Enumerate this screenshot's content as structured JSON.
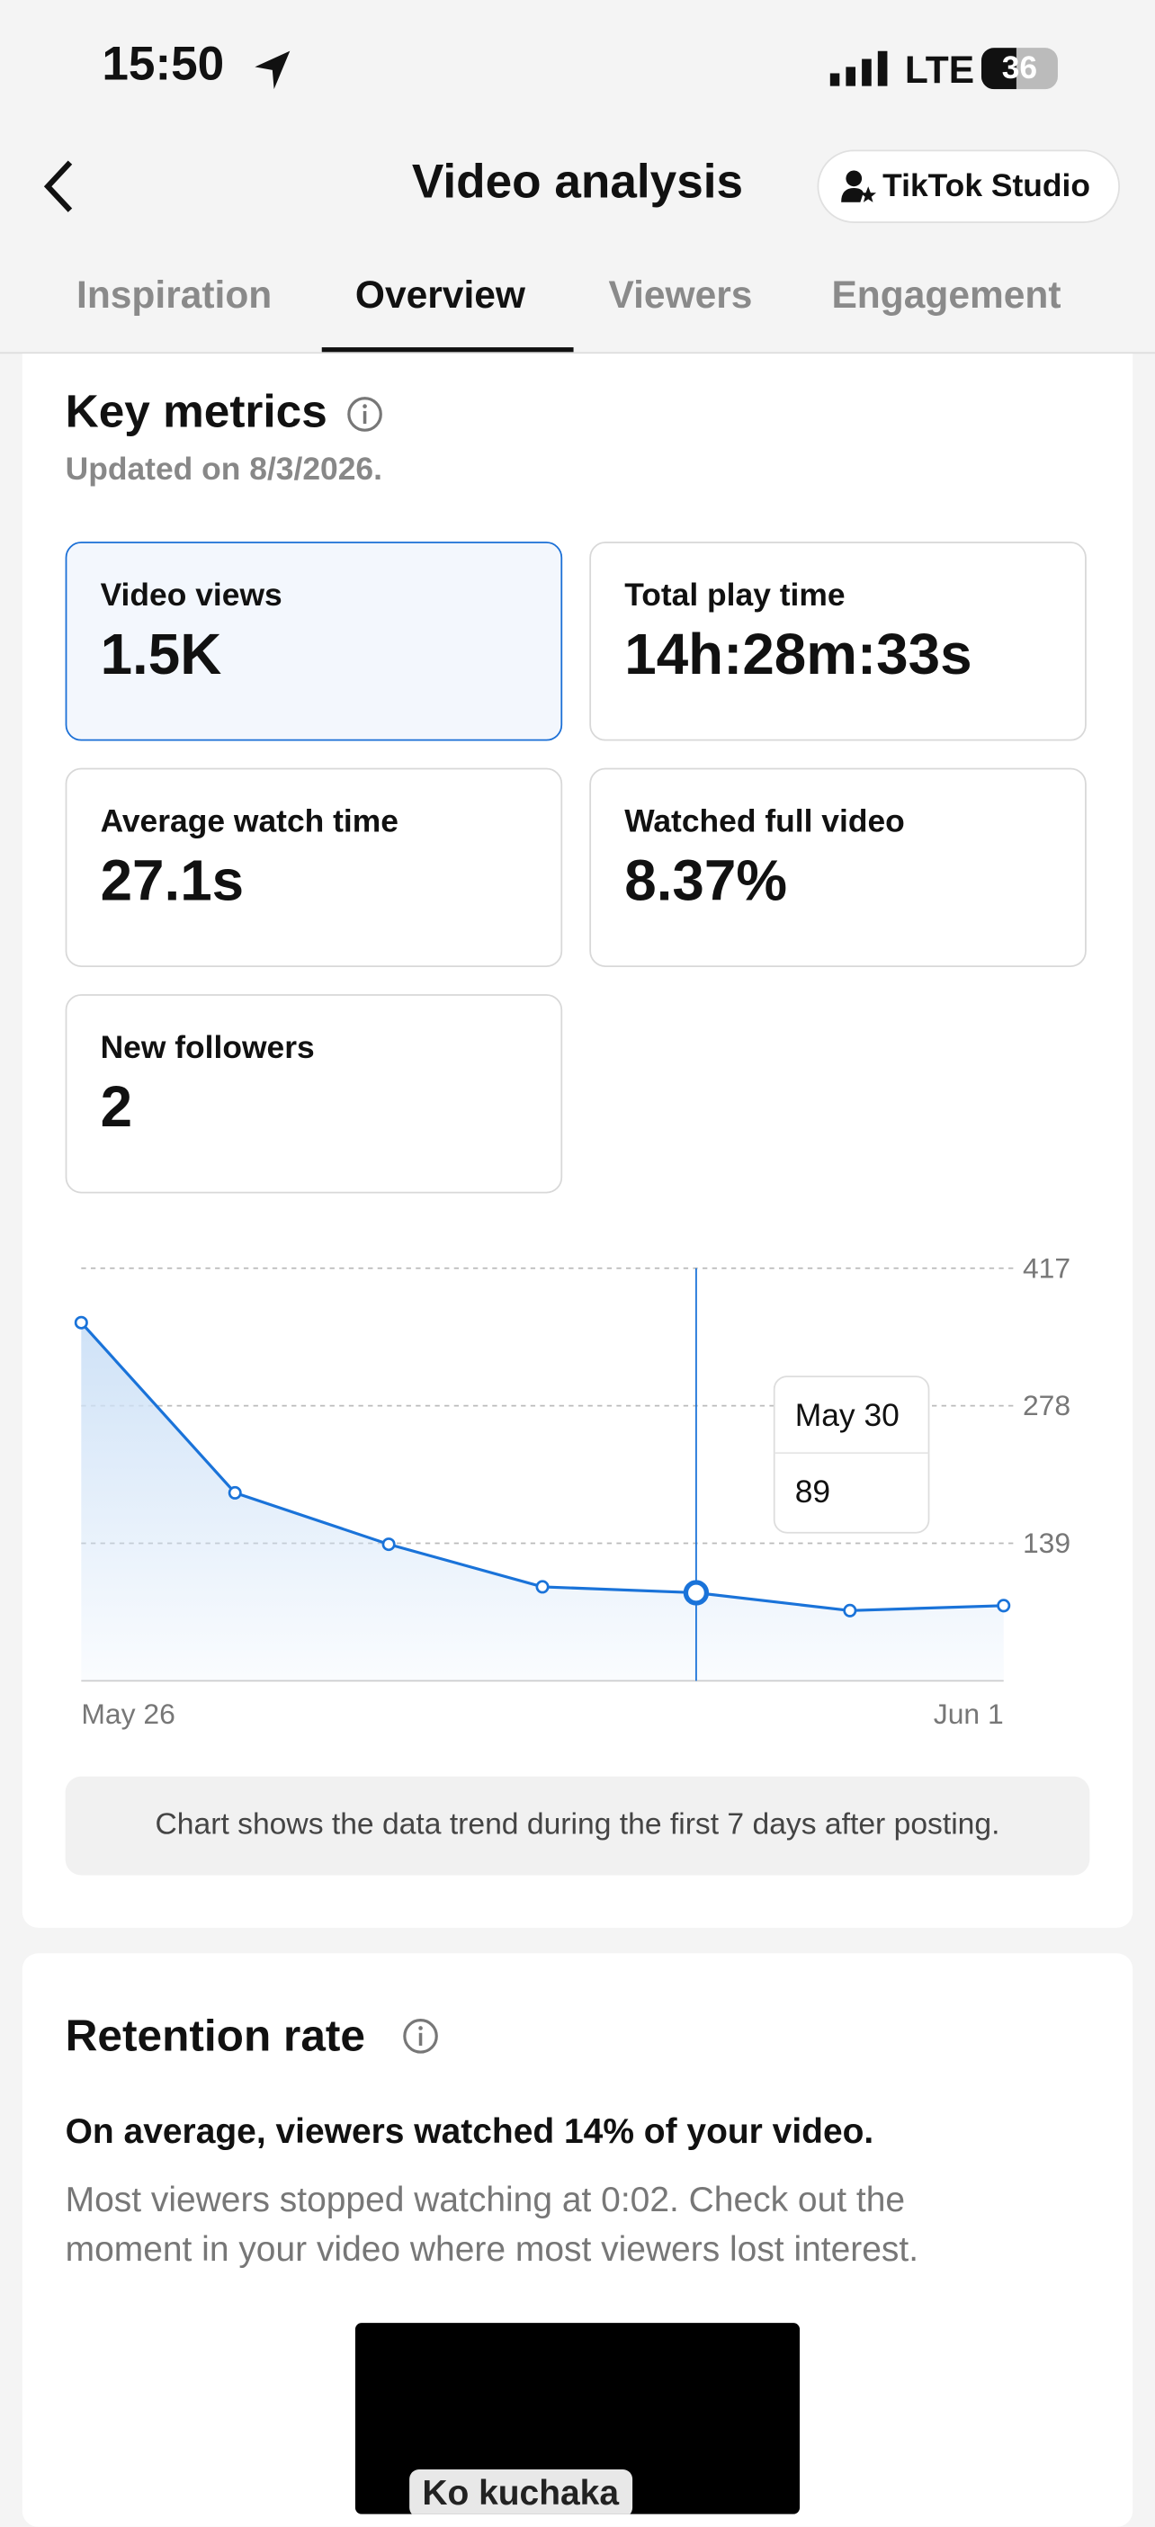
{
  "status_bar": {
    "time": "15:50",
    "network": "LTE",
    "battery": "36"
  },
  "header": {
    "title": "Video analysis",
    "studio_button": "TikTok Studio"
  },
  "tabs": [
    "Inspiration",
    "Overview",
    "Viewers",
    "Engagement"
  ],
  "key_metrics": {
    "title": "Key metrics",
    "updated": "Updated on 8/3/2026.",
    "metrics": [
      {
        "label": "Video views",
        "value": "1.5K"
      },
      {
        "label": "Total play time",
        "value": "14h:28m:33s"
      },
      {
        "label": "Average watch time",
        "value": "27.1s"
      },
      {
        "label": "Watched full video",
        "value": "8.37%"
      },
      {
        "label": "New followers",
        "value": "2"
      }
    ]
  },
  "chart_data": {
    "type": "line",
    "categories": [
      "May 26",
      null,
      null,
      null,
      null,
      null,
      "Jun 1"
    ],
    "values": [
      362,
      190,
      138,
      95,
      89,
      71,
      76
    ],
    "color": "#1a73d9",
    "ylim": [
      0,
      417
    ],
    "yticks": [
      139,
      278,
      417
    ],
    "grid": true,
    "tooltip": {
      "category": "May 30",
      "value": 89
    }
  },
  "chart_note": "Chart shows the data trend during the first 7 days after posting.",
  "retention": {
    "title": "Retention rate",
    "summary": "On average, viewers watched 14% of your video.",
    "detail": "Most viewers stopped watching at 0:02. Check out the moment in your video where most viewers lost interest.",
    "video_caption": "Ko kuchaka"
  }
}
